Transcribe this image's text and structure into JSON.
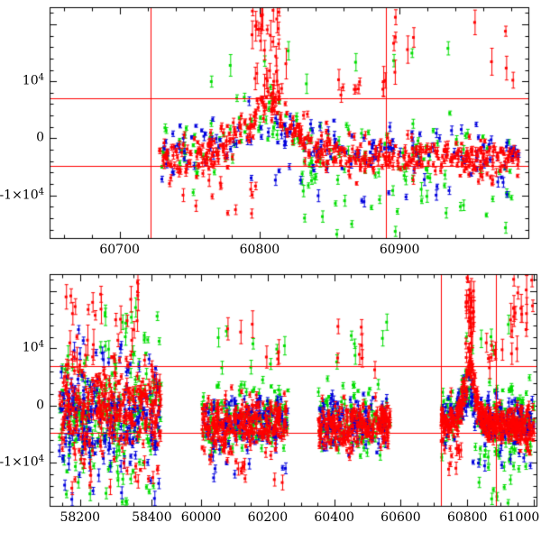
{
  "figure": {
    "background": "#ffffff",
    "frame_color": "#000000",
    "ref_line_color": "#ff0000",
    "colors": {
      "red": "#ff0000",
      "green": "#00dd00",
      "blue": "#0000dd"
    },
    "seed": 11
  },
  "chart_data": [
    {
      "type": "scatter",
      "panel": "top",
      "title": "",
      "xlabel": "",
      "ylabel": "",
      "xlim": [
        60650,
        60992
      ],
      "ylim": [
        -17500,
        23000
      ],
      "x_major_ticks": [
        60700,
        60800,
        60900
      ],
      "x_minor_step": 20,
      "y_labeled_ticks": [
        10000,
        0,
        -10000
      ],
      "y_tick_labels": [
        {
          "text": "10",
          "sup": "4"
        },
        {
          "text": "0",
          "sup": ""
        },
        {
          "text": "-1×10",
          "sup": "4"
        }
      ],
      "y_major_step": 10000,
      "y_minor_step": 2000,
      "ref_lines_h": [
        7000,
        -4800
      ],
      "ref_lines_v": [
        60722,
        60890
      ],
      "series": [
        {
          "color": "green",
          "count": 150,
          "x": [
            60730,
            60985
          ],
          "base": [
            [
              60730,
              -3200
            ],
            [
              60775,
              -1500
            ],
            [
              60795,
              1500
            ],
            [
              60806,
              4200
            ],
            [
              60818,
              800
            ],
            [
              60835,
              -2200
            ],
            [
              60985,
              -3300
            ]
          ],
          "sigma": 3200,
          "ebar": [
            200,
            800
          ]
        },
        {
          "color": "green",
          "count": 26,
          "x": [
            60830,
            60985
          ],
          "y": [
            -17200,
            -6500
          ],
          "ebar": [
            300,
            1200
          ]
        },
        {
          "color": "green",
          "count": 9,
          "x": [
            60745,
            60965
          ],
          "y": [
            9000,
            15800
          ],
          "ebar": [
            500,
            2000
          ]
        },
        {
          "color": "blue",
          "count": 165,
          "x": [
            60730,
            60985
          ],
          "base": [
            [
              60730,
              -2900
            ],
            [
              60780,
              -800
            ],
            [
              60806,
              3800
            ],
            [
              60822,
              300
            ],
            [
              60840,
              -2100
            ],
            [
              60985,
              -2800
            ]
          ],
          "sigma": 2200,
          "ebar": [
            200,
            800
          ]
        },
        {
          "color": "blue",
          "count": 13,
          "x": [
            60790,
            60985
          ],
          "y": [
            -11500,
            -6500
          ],
          "ebar": [
            300,
            1100
          ]
        },
        {
          "color": "red",
          "count": 480,
          "x": [
            60728,
            60985
          ],
          "base": [
            [
              60728,
              -3900
            ],
            [
              60755,
              -3100
            ],
            [
              60775,
              -1300
            ],
            [
              60793,
              2200
            ],
            [
              60803,
              6000
            ],
            [
              60811,
              6600
            ],
            [
              60820,
              2800
            ],
            [
              60833,
              -700
            ],
            [
              60848,
              -2400
            ],
            [
              60865,
              -3300
            ],
            [
              60985,
              -3700
            ]
          ],
          "sigma": 1600,
          "ebar": [
            200,
            800
          ]
        },
        {
          "color": "red",
          "count": 34,
          "x": [
            60794,
            60819
          ],
          "y": [
            7500,
            22500
          ],
          "ebar": [
            700,
            2800
          ]
        },
        {
          "color": "red",
          "count": 12,
          "x": [
            60742,
            60800
          ],
          "y": [
            -13500,
            -6800
          ],
          "ebar": [
            300,
            1200
          ]
        },
        {
          "color": "red",
          "count": 9,
          "x": [
            60848,
            60892
          ],
          "y": [
            4500,
            10500
          ],
          "ebar": [
            500,
            2000
          ]
        },
        {
          "color": "red",
          "count": 7,
          "x": [
            60888,
            60912
          ],
          "y": [
            8000,
            22000
          ],
          "ebar": [
            800,
            2800
          ]
        },
        {
          "color": "red",
          "count": 5,
          "x": [
            60950,
            60985
          ],
          "y": [
            9000,
            21000
          ],
          "ebar": [
            700,
            2500
          ]
        }
      ]
    },
    {
      "type": "scatter",
      "panel": "bottom",
      "title": "",
      "xlabel": "",
      "ylabel": "",
      "axis_break": {
        "segments": [
          [
            58115,
            58468
          ],
          [
            59925,
            61008
          ]
        ],
        "pixel_fractions": [
          0.26,
          0.74
        ]
      },
      "ylim": [
        -17500,
        23000
      ],
      "x_major_ticks": [
        58200,
        58400,
        60000,
        60200,
        60400,
        60600,
        60800,
        61000
      ],
      "x_minor_step": 50,
      "y_labeled_ticks": [
        10000,
        0,
        -10000
      ],
      "y_tick_labels": [
        {
          "text": "10",
          "sup": "4"
        },
        {
          "text": "0",
          "sup": ""
        },
        {
          "text": "-1×10",
          "sup": "4"
        }
      ],
      "y_major_step": 10000,
      "y_minor_step": 2000,
      "ref_lines_h": [
        7000,
        -4800
      ],
      "ref_lines_v": [
        60722,
        60885
      ],
      "series": [
        {
          "color": "green",
          "count": 190,
          "x": [
            58142,
            58425
          ],
          "base": [
            [
              58142,
              -1200
            ],
            [
              58425,
              -600
            ]
          ],
          "sigma": 4600,
          "ebar": [
            250,
            1100
          ]
        },
        {
          "color": "green",
          "count": 14,
          "x": [
            58150,
            58420
          ],
          "y": [
            8500,
            18500
          ],
          "ebar": [
            500,
            2000
          ]
        },
        {
          "color": "green",
          "count": 16,
          "x": [
            58150,
            58420
          ],
          "y": [
            -17000,
            -9000
          ],
          "ebar": [
            350,
            1400
          ]
        },
        {
          "color": "green",
          "count": 125,
          "x": [
            60002,
            60262
          ],
          "base": [
            [
              60002,
              -2600
            ],
            [
              60262,
              -2400
            ]
          ],
          "sigma": 3100,
          "ebar": [
            200,
            900
          ]
        },
        {
          "color": "green",
          "count": 8,
          "x": [
            60020,
            60255
          ],
          "y": [
            6500,
            13500
          ],
          "ebar": [
            450,
            1700
          ]
        },
        {
          "color": "green",
          "count": 105,
          "x": [
            60352,
            60568
          ],
          "base": [
            [
              60352,
              -2800
            ],
            [
              60568,
              -2700
            ]
          ],
          "sigma": 2900,
          "ebar": [
            200,
            900
          ]
        },
        {
          "color": "green",
          "count": 6,
          "x": [
            60360,
            60560
          ],
          "y": [
            6500,
            15200
          ],
          "ebar": [
            450,
            1700
          ]
        },
        {
          "color": "green",
          "count": 135,
          "x": [
            60722,
            61000
          ],
          "base": [
            [
              60722,
              -3200
            ],
            [
              60770,
              -1500
            ],
            [
              60795,
              1500
            ],
            [
              60806,
              4200
            ],
            [
              60818,
              800
            ],
            [
              60835,
              -2200
            ],
            [
              61000,
              -3300
            ]
          ],
          "sigma": 3200,
          "ebar": [
            200,
            800
          ]
        },
        {
          "color": "green",
          "count": 20,
          "x": [
            60830,
            61000
          ],
          "y": [
            -17200,
            -6500
          ],
          "ebar": [
            300,
            1200
          ]
        },
        {
          "color": "green",
          "count": 6,
          "x": [
            60745,
            60990
          ],
          "y": [
            9000,
            15800
          ],
          "ebar": [
            500,
            1900
          ]
        },
        {
          "color": "blue",
          "count": 190,
          "x": [
            58142,
            58425
          ],
          "base": [
            [
              58142,
              -1800
            ],
            [
              58425,
              -1100
            ]
          ],
          "sigma": 4300,
          "ebar": [
            250,
            1100
          ]
        },
        {
          "color": "blue",
          "count": 8,
          "x": [
            58160,
            58410
          ],
          "y": [
            8000,
            13500
          ],
          "ebar": [
            450,
            1600
          ]
        },
        {
          "color": "blue",
          "count": 12,
          "x": [
            58150,
            58420
          ],
          "y": [
            -16500,
            -9500
          ],
          "ebar": [
            350,
            1400
          ]
        },
        {
          "color": "blue",
          "count": 135,
          "x": [
            60002,
            60262
          ],
          "base": [
            [
              60002,
              -2900
            ],
            [
              60262,
              -2700
            ]
          ],
          "sigma": 2500,
          "ebar": [
            200,
            900
          ]
        },
        {
          "color": "blue",
          "count": 6,
          "x": [
            60020,
            60255
          ],
          "y": [
            -13000,
            -9500
          ],
          "ebar": [
            300,
            1100
          ]
        },
        {
          "color": "blue",
          "count": 115,
          "x": [
            60352,
            60568
          ],
          "base": [
            [
              60352,
              -3000
            ],
            [
              60568,
              -2900
            ]
          ],
          "sigma": 2300,
          "ebar": [
            200,
            900
          ]
        },
        {
          "color": "blue",
          "count": 150,
          "x": [
            60722,
            61000
          ],
          "base": [
            [
              60722,
              -2900
            ],
            [
              60780,
              -800
            ],
            [
              60806,
              3800
            ],
            [
              60822,
              300
            ],
            [
              60840,
              -2100
            ],
            [
              61000,
              -2800
            ]
          ],
          "sigma": 2200,
          "ebar": [
            200,
            800
          ]
        },
        {
          "color": "blue",
          "count": 10,
          "x": [
            60790,
            61000
          ],
          "y": [
            -11500,
            -6500
          ],
          "ebar": [
            300,
            1100
          ]
        },
        {
          "color": "red",
          "count": 290,
          "x": [
            58142,
            58425
          ],
          "base": [
            [
              58142,
              -700
            ],
            [
              58425,
              -300
            ]
          ],
          "sigma": 4000,
          "ebar": [
            250,
            1100
          ]
        },
        {
          "color": "red",
          "count": 28,
          "x": [
            58155,
            58370
          ],
          "y": [
            8000,
            21800
          ],
          "ebar": [
            700,
            2700
          ]
        },
        {
          "color": "red",
          "count": 18,
          "x": [
            58150,
            58420
          ],
          "y": [
            -14500,
            -8500
          ],
          "ebar": [
            350,
            1400
          ]
        },
        {
          "color": "red",
          "count": 270,
          "x": [
            60002,
            60262
          ],
          "base": [
            [
              60002,
              -3300
            ],
            [
              60262,
              -3100
            ]
          ],
          "sigma": 2200,
          "ebar": [
            200,
            900
          ]
        },
        {
          "color": "red",
          "count": 12,
          "x": [
            60010,
            60258
          ],
          "y": [
            -13500,
            -8500
          ],
          "ebar": [
            350,
            1300
          ]
        },
        {
          "color": "red",
          "count": 6,
          "x": [
            60060,
            60250
          ],
          "y": [
            7000,
            15500
          ],
          "ebar": [
            700,
            2500
          ]
        },
        {
          "color": "red",
          "count": 235,
          "x": [
            60352,
            60568
          ],
          "base": [
            [
              60352,
              -3400
            ],
            [
              60568,
              -3200
            ]
          ],
          "sigma": 2000,
          "ebar": [
            200,
            900
          ]
        },
        {
          "color": "red",
          "count": 7,
          "x": [
            60360,
            60560
          ],
          "y": [
            6000,
            14000
          ],
          "ebar": [
            600,
            2200
          ]
        },
        {
          "color": "red",
          "count": 400,
          "x": [
            60720,
            61000
          ],
          "base": [
            [
              60720,
              -3900
            ],
            [
              60755,
              -3100
            ],
            [
              60775,
              -1300
            ],
            [
              60793,
              2200
            ],
            [
              60803,
              6000
            ],
            [
              60811,
              6600
            ],
            [
              60820,
              2800
            ],
            [
              60833,
              -700
            ],
            [
              60848,
              -2400
            ],
            [
              60865,
              -3300
            ],
            [
              61000,
              -3700
            ]
          ],
          "sigma": 1600,
          "ebar": [
            200,
            800
          ]
        },
        {
          "color": "red",
          "count": 30,
          "x": [
            60794,
            60819
          ],
          "y": [
            7500,
            22500
          ],
          "ebar": [
            700,
            2800
          ]
        },
        {
          "color": "red",
          "count": 10,
          "x": [
            60742,
            60800
          ],
          "y": [
            -13500,
            -6800
          ],
          "ebar": [
            350,
            1300
          ]
        },
        {
          "color": "red",
          "count": 16,
          "x": [
            60930,
            61000
          ],
          "y": [
            8500,
            23500
          ],
          "ebar": [
            800,
            3000
          ]
        },
        {
          "color": "red",
          "count": 8,
          "x": [
            60848,
            60910
          ],
          "y": [
            4500,
            12000
          ],
          "ebar": [
            500,
            2000
          ]
        }
      ]
    }
  ]
}
